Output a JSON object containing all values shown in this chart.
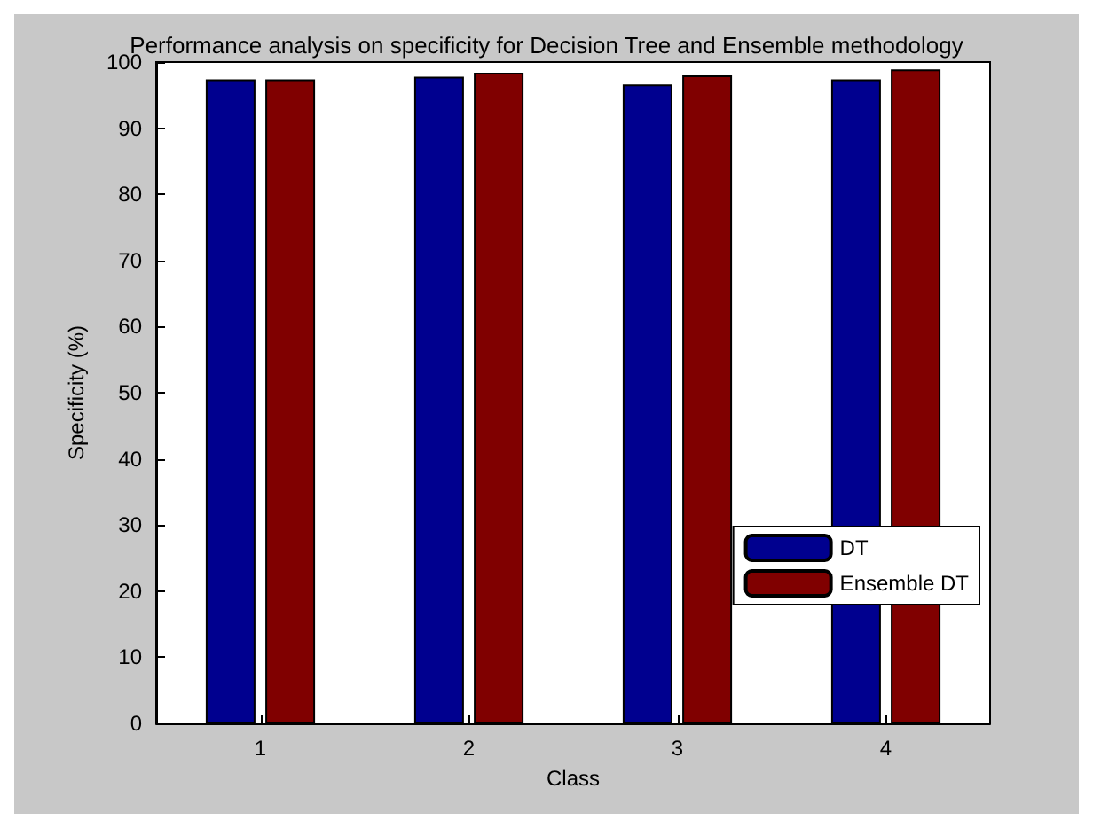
{
  "chart_data": {
    "type": "bar",
    "title": "Performance analysis on specificity for Decision Tree and Ensemble methodology",
    "xlabel": "Class",
    "ylabel": "Specificity (%)",
    "categories": [
      "1",
      "2",
      "3",
      "4"
    ],
    "series": [
      {
        "name": "DT",
        "color": "#00008f",
        "values": [
          97.4,
          97.8,
          96.6,
          97.4
        ]
      },
      {
        "name": "Ensemble DT",
        "color": "#800000",
        "values": [
          97.4,
          98.4,
          98.0,
          98.9
        ]
      }
    ],
    "ylim": [
      0,
      100
    ],
    "yticks": [
      0,
      10,
      20,
      30,
      40,
      50,
      60,
      70,
      80,
      90,
      100
    ],
    "grid": false,
    "legend": "bottom right"
  }
}
